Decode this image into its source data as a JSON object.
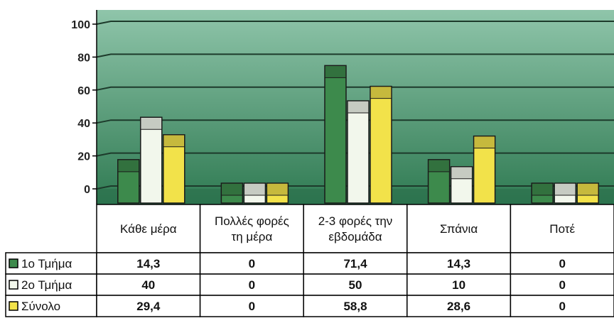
{
  "chart_data": {
    "type": "bar",
    "categories": [
      [
        "Κάθε μέρα"
      ],
      [
        "Πολλές φορές",
        "τη μέρα"
      ],
      [
        "2-3 φορές την",
        "εβδομάδα"
      ],
      [
        "Σπάνια"
      ],
      [
        "Ποτέ"
      ]
    ],
    "series": [
      {
        "name": "1ο Τμήμα",
        "values": [
          14.3,
          0,
          71.4,
          14.3,
          0
        ],
        "labels": [
          "14,3",
          "0",
          "71,4",
          "14,3",
          "0"
        ],
        "color": "#3d8a4c"
      },
      {
        "name": "2ο Τμήμα",
        "values": [
          40,
          0,
          50,
          10,
          0
        ],
        "labels": [
          "40",
          "0",
          "50",
          "10",
          "0"
        ],
        "color": "#f2f7ec"
      },
      {
        "name": "Σύνολο",
        "values": [
          29.4,
          0,
          58.8,
          28.6,
          0
        ],
        "labels": [
          "29,4",
          "0",
          "58,8",
          "28,6",
          "0"
        ],
        "color": "#f2e24a"
      }
    ],
    "yticks": [
      "0",
      "20",
      "40",
      "60",
      "80",
      "100"
    ],
    "ylim": [
      0,
      100
    ],
    "grid": true,
    "data_table": true
  },
  "colors": {
    "plot_top": "#8fc5aa",
    "plot_bottom": "#2f7a52",
    "grid": "#1d3a2b"
  }
}
